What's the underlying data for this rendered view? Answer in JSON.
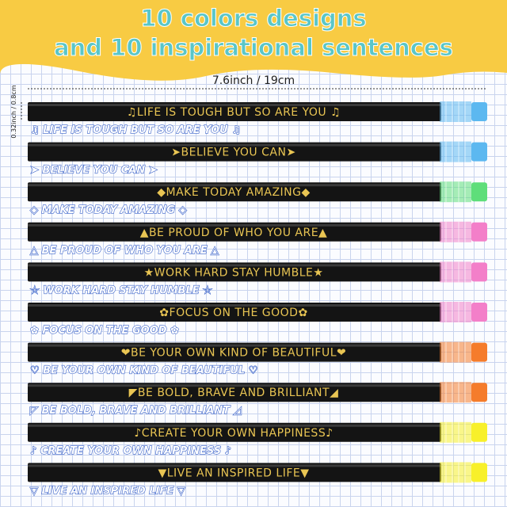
{
  "header": {
    "title_line1": "10 colors designs",
    "title_line2": "and 10 inspirational sentences"
  },
  "dimensions": {
    "length": "7.6inch / 19cm",
    "diameter": "0.32inch / 0.8cm"
  },
  "pencils": [
    {
      "label": "♫LIFE IS TOUGH BUT SO ARE YOU ♫",
      "caption": "♫ LIFE IS TOUGH BUT SO ARE YOU ♫",
      "eraser_color": "#5cb8f0"
    },
    {
      "label": "➤BELIEVE YOU CAN➤",
      "caption": "➤ BELIEVE YOU CAN ➤",
      "eraser_color": "#5cb8f0"
    },
    {
      "label": "◆MAKE TODAY AMAZING◆",
      "caption": "◇ MAKE TODAY AMAZING ◇",
      "eraser_color": "#5ede7a"
    },
    {
      "label": "▲BE PROUD OF WHO YOU ARE▲",
      "caption": "△ BE PROUD OF WHO YOU ARE △",
      "eraser_color": "#f37fc9"
    },
    {
      "label": "★WORK HARD STAY HUMBLE★",
      "caption": "☆ WORK HARD STAY HUMBLE ☆",
      "eraser_color": "#f37fc9"
    },
    {
      "label": "✿FOCUS ON THE GOOD✿",
      "caption": "✿ FOCUS ON THE GOOD ✿",
      "eraser_color": "#f37fc9"
    },
    {
      "label": "❤BE YOUR OWN KIND OF BEAUTIFUL❤",
      "caption": "♡ BE YOUR OWN KIND OF BEAUTIFUL ♡",
      "eraser_color": "#f57c2b"
    },
    {
      "label": "◤BE BOLD, BRAVE AND BRILLIANT◢",
      "caption": "◸ BE BOLD, BRAVE AND BRILLIANT ◿",
      "eraser_color": "#f57c2b"
    },
    {
      "label": "♪CREATE YOUR OWN HAPPINESS♪",
      "caption": "♪ CREATE YOUR OWN HAPPINESS ♪",
      "eraser_color": "#f8f02a"
    },
    {
      "label": "▼LIVE AN INSPIRED LIFE▼",
      "caption": "▽ LIVE AN INSPIRED LIFE ▽",
      "eraser_color": "#f8f02a"
    }
  ]
}
